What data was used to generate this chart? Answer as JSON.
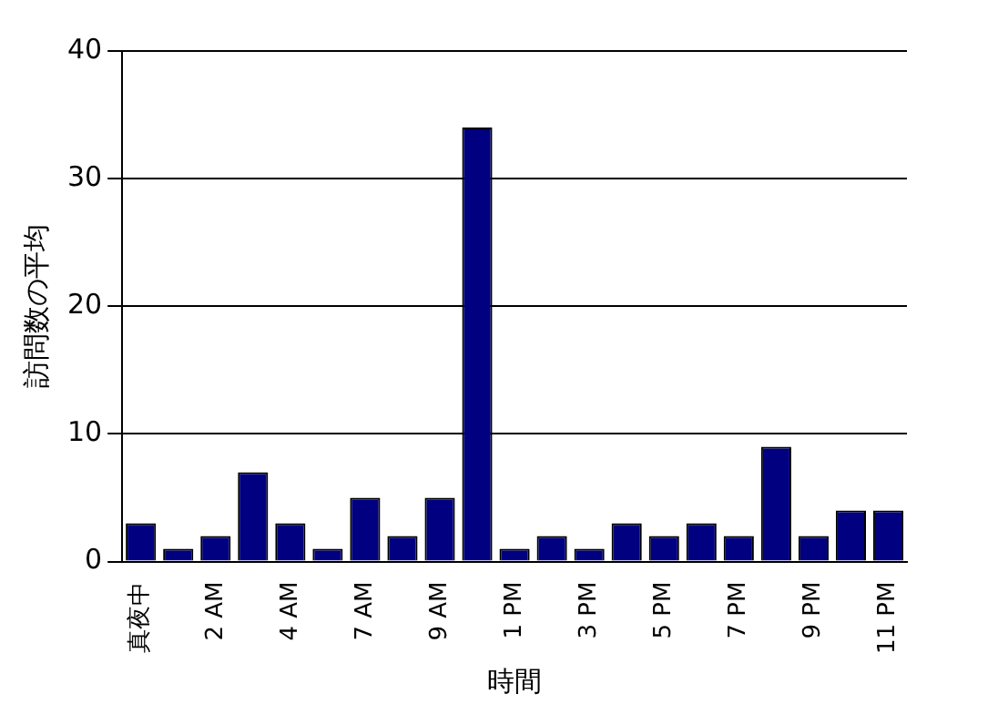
{
  "chart_data": {
    "type": "bar",
    "xlabel": "時間",
    "ylabel": "訪問数の平均",
    "categories": [
      "真夜中",
      null,
      "2 AM",
      null,
      "4 AM",
      null,
      "7 AM",
      null,
      "9 AM",
      null,
      "1 PM",
      null,
      "3 PM",
      null,
      "5 PM",
      null,
      "7 PM",
      null,
      "9 PM",
      null,
      "11 PM"
    ],
    "values": [
      3,
      1,
      2,
      7,
      3,
      1,
      5,
      2,
      5,
      34,
      1,
      2,
      1,
      3,
      2,
      3,
      2,
      9,
      2,
      4,
      4
    ],
    "color": "#000080",
    "ylim": [
      0,
      40
    ],
    "yticks": [
      0,
      10,
      20,
      30,
      40
    ],
    "grid": "y",
    "legend": false
  }
}
